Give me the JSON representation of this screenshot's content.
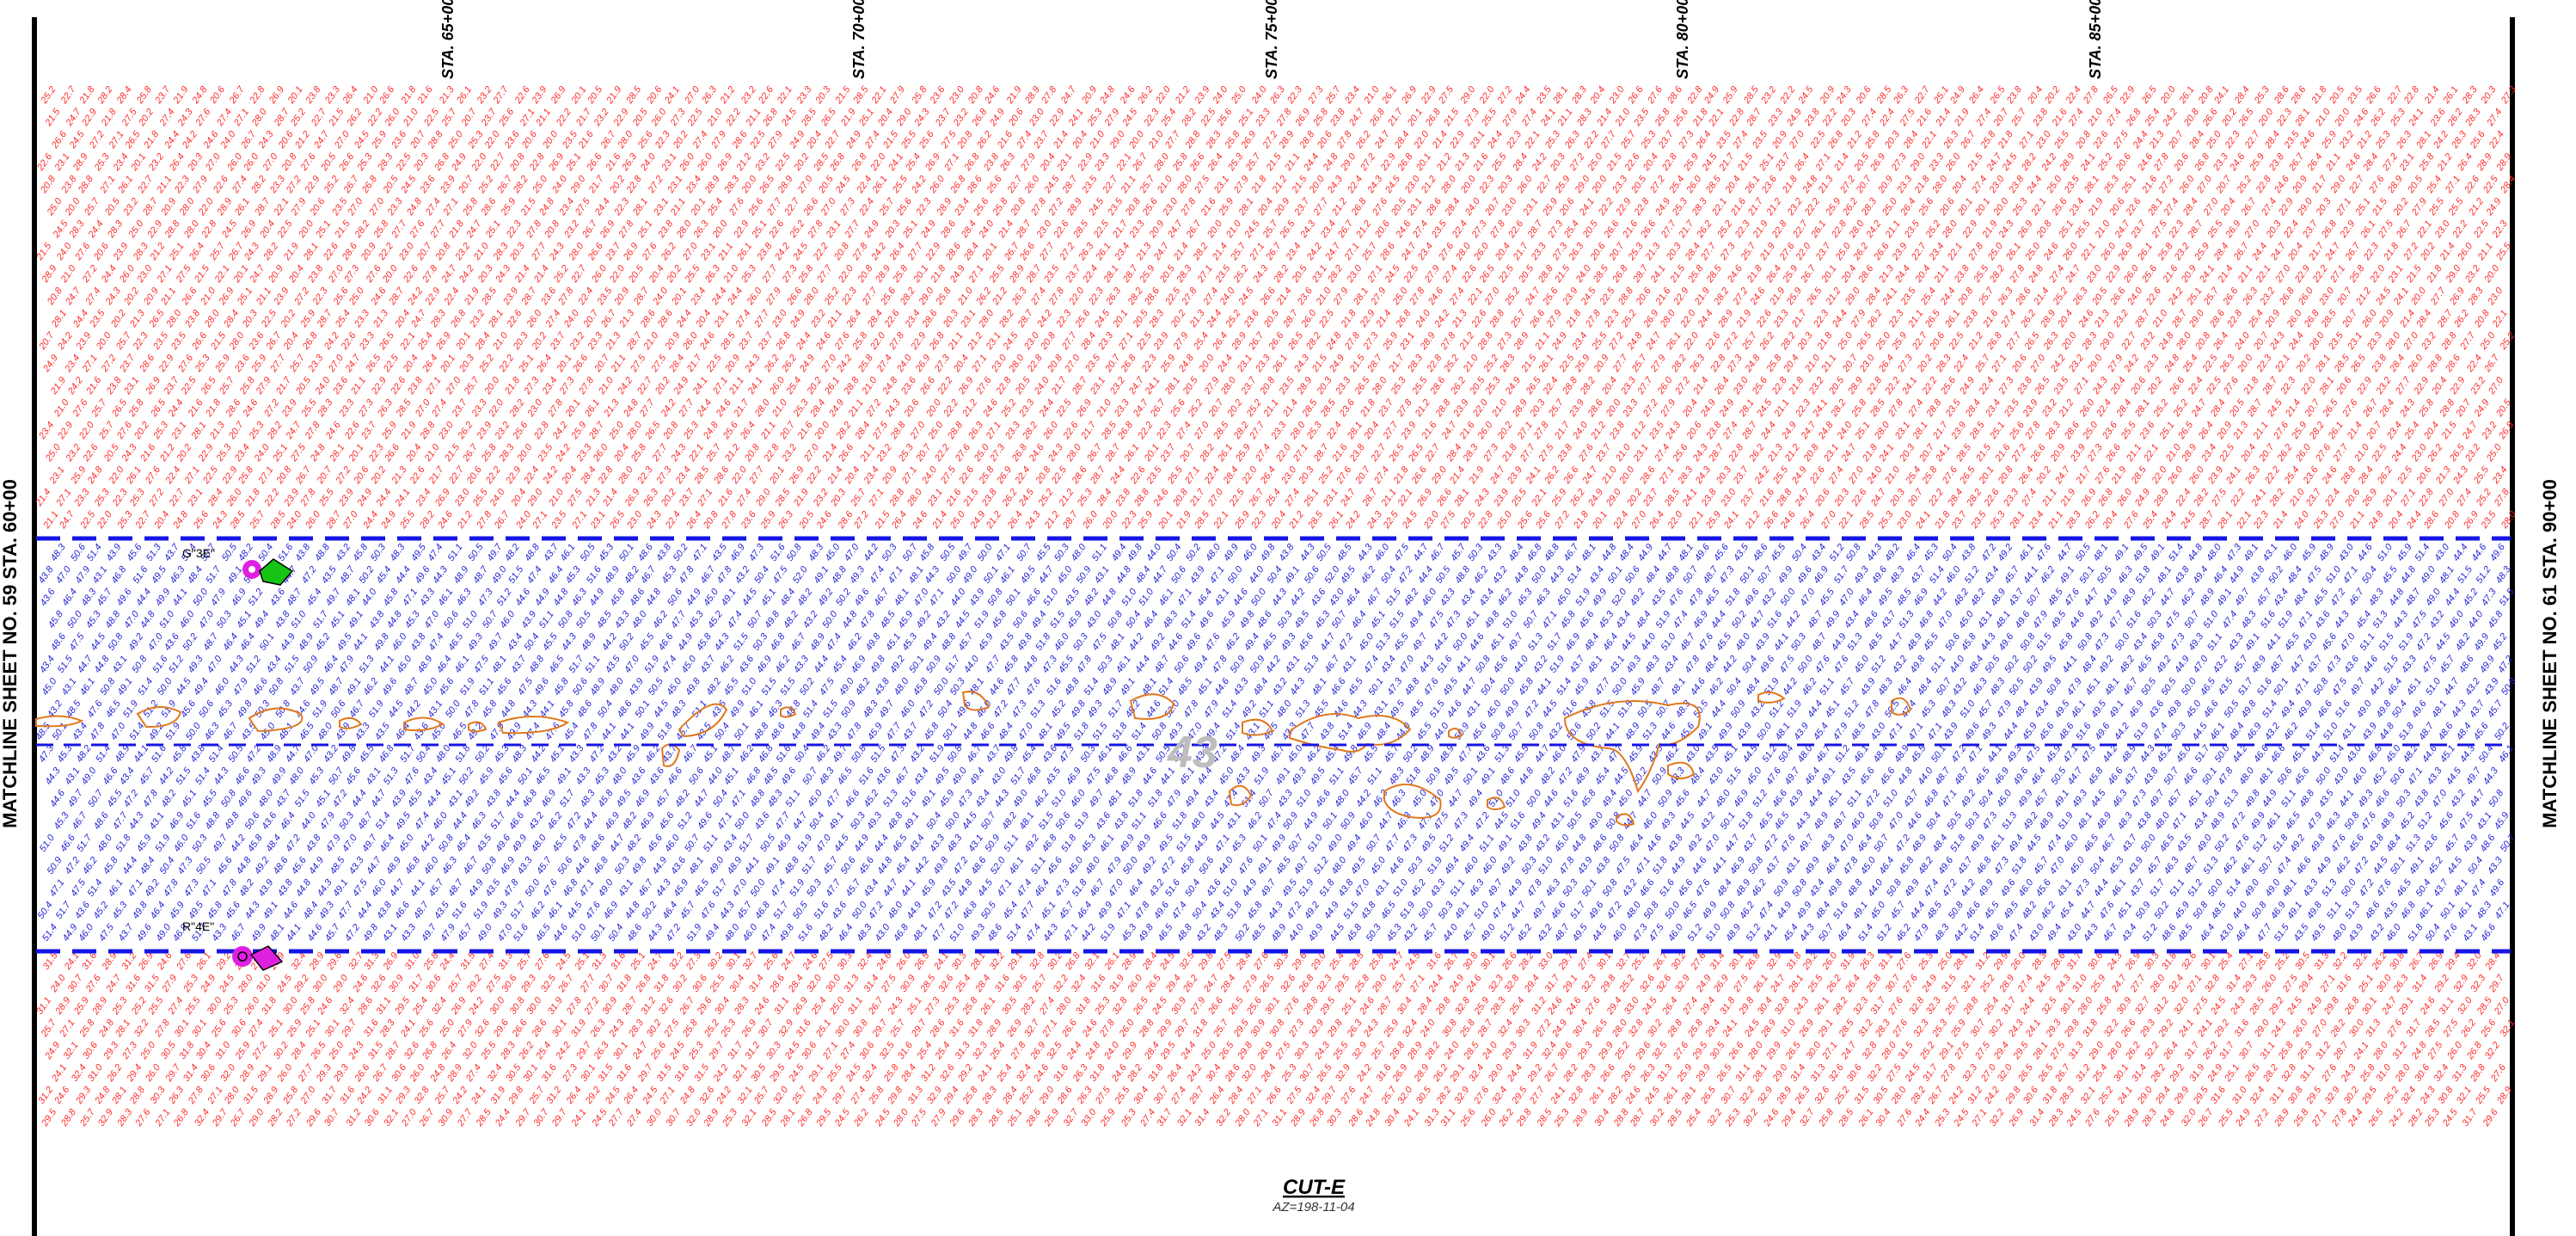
{
  "matchline_left": "MATCHLINE SHEET NO. 59 STA. 60+00",
  "matchline_right": "MATCHLINE SHEET NO. 61 STA. 90+00",
  "stations": [
    "STA. 65+00",
    "STA. 70+00",
    "STA. 75+00",
    "STA. 80+00",
    "STA. 85+00"
  ],
  "cut_title": "CUT-E",
  "cut_subtitle": "AZ=198-11-04",
  "grid_labels": {
    "upper": "G\"3E\"",
    "lower": "R\"4E\""
  },
  "center_label": "43",
  "colors": {
    "depth_high": "#ff2a2a",
    "depth_channel": "#2323d6",
    "boundary_line": "#1515e6",
    "shoal_outline": "#e0781e",
    "marker_magenta": "#e020e0",
    "marker_green": "#16c416"
  }
}
